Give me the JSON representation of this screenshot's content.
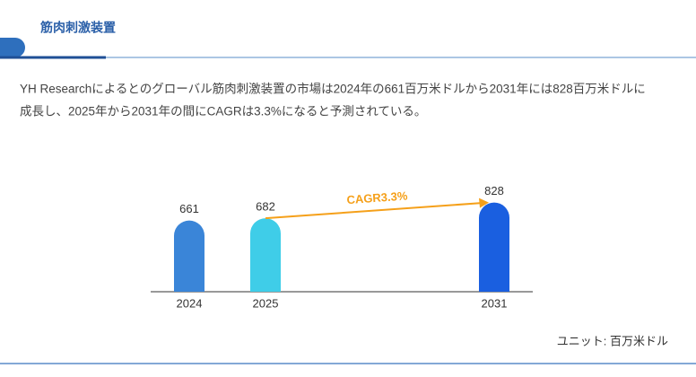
{
  "header": {
    "title": "筋肉刺激装置"
  },
  "paragraph": [
    "YH Researchによるとのグローバル筋肉刺激装置の市場は2024年の661百万米ドルから2031年には828百万米ドルに",
    "成長し、2025年から2031年の間にCAGRは3.3%になると予測されている。"
  ],
  "chart_data": {
    "type": "bar",
    "categories": [
      "2024",
      "2025",
      "2031"
    ],
    "values": [
      661,
      682,
      828
    ],
    "colors": [
      "#3a85d8",
      "#3fcde8",
      "#1a5fe0"
    ],
    "ylim": [
      0,
      1000
    ],
    "annotation": "CAGR3.3%",
    "annotation_color": "#f5a01a"
  },
  "unit": "ユニット: 百万米ドル"
}
